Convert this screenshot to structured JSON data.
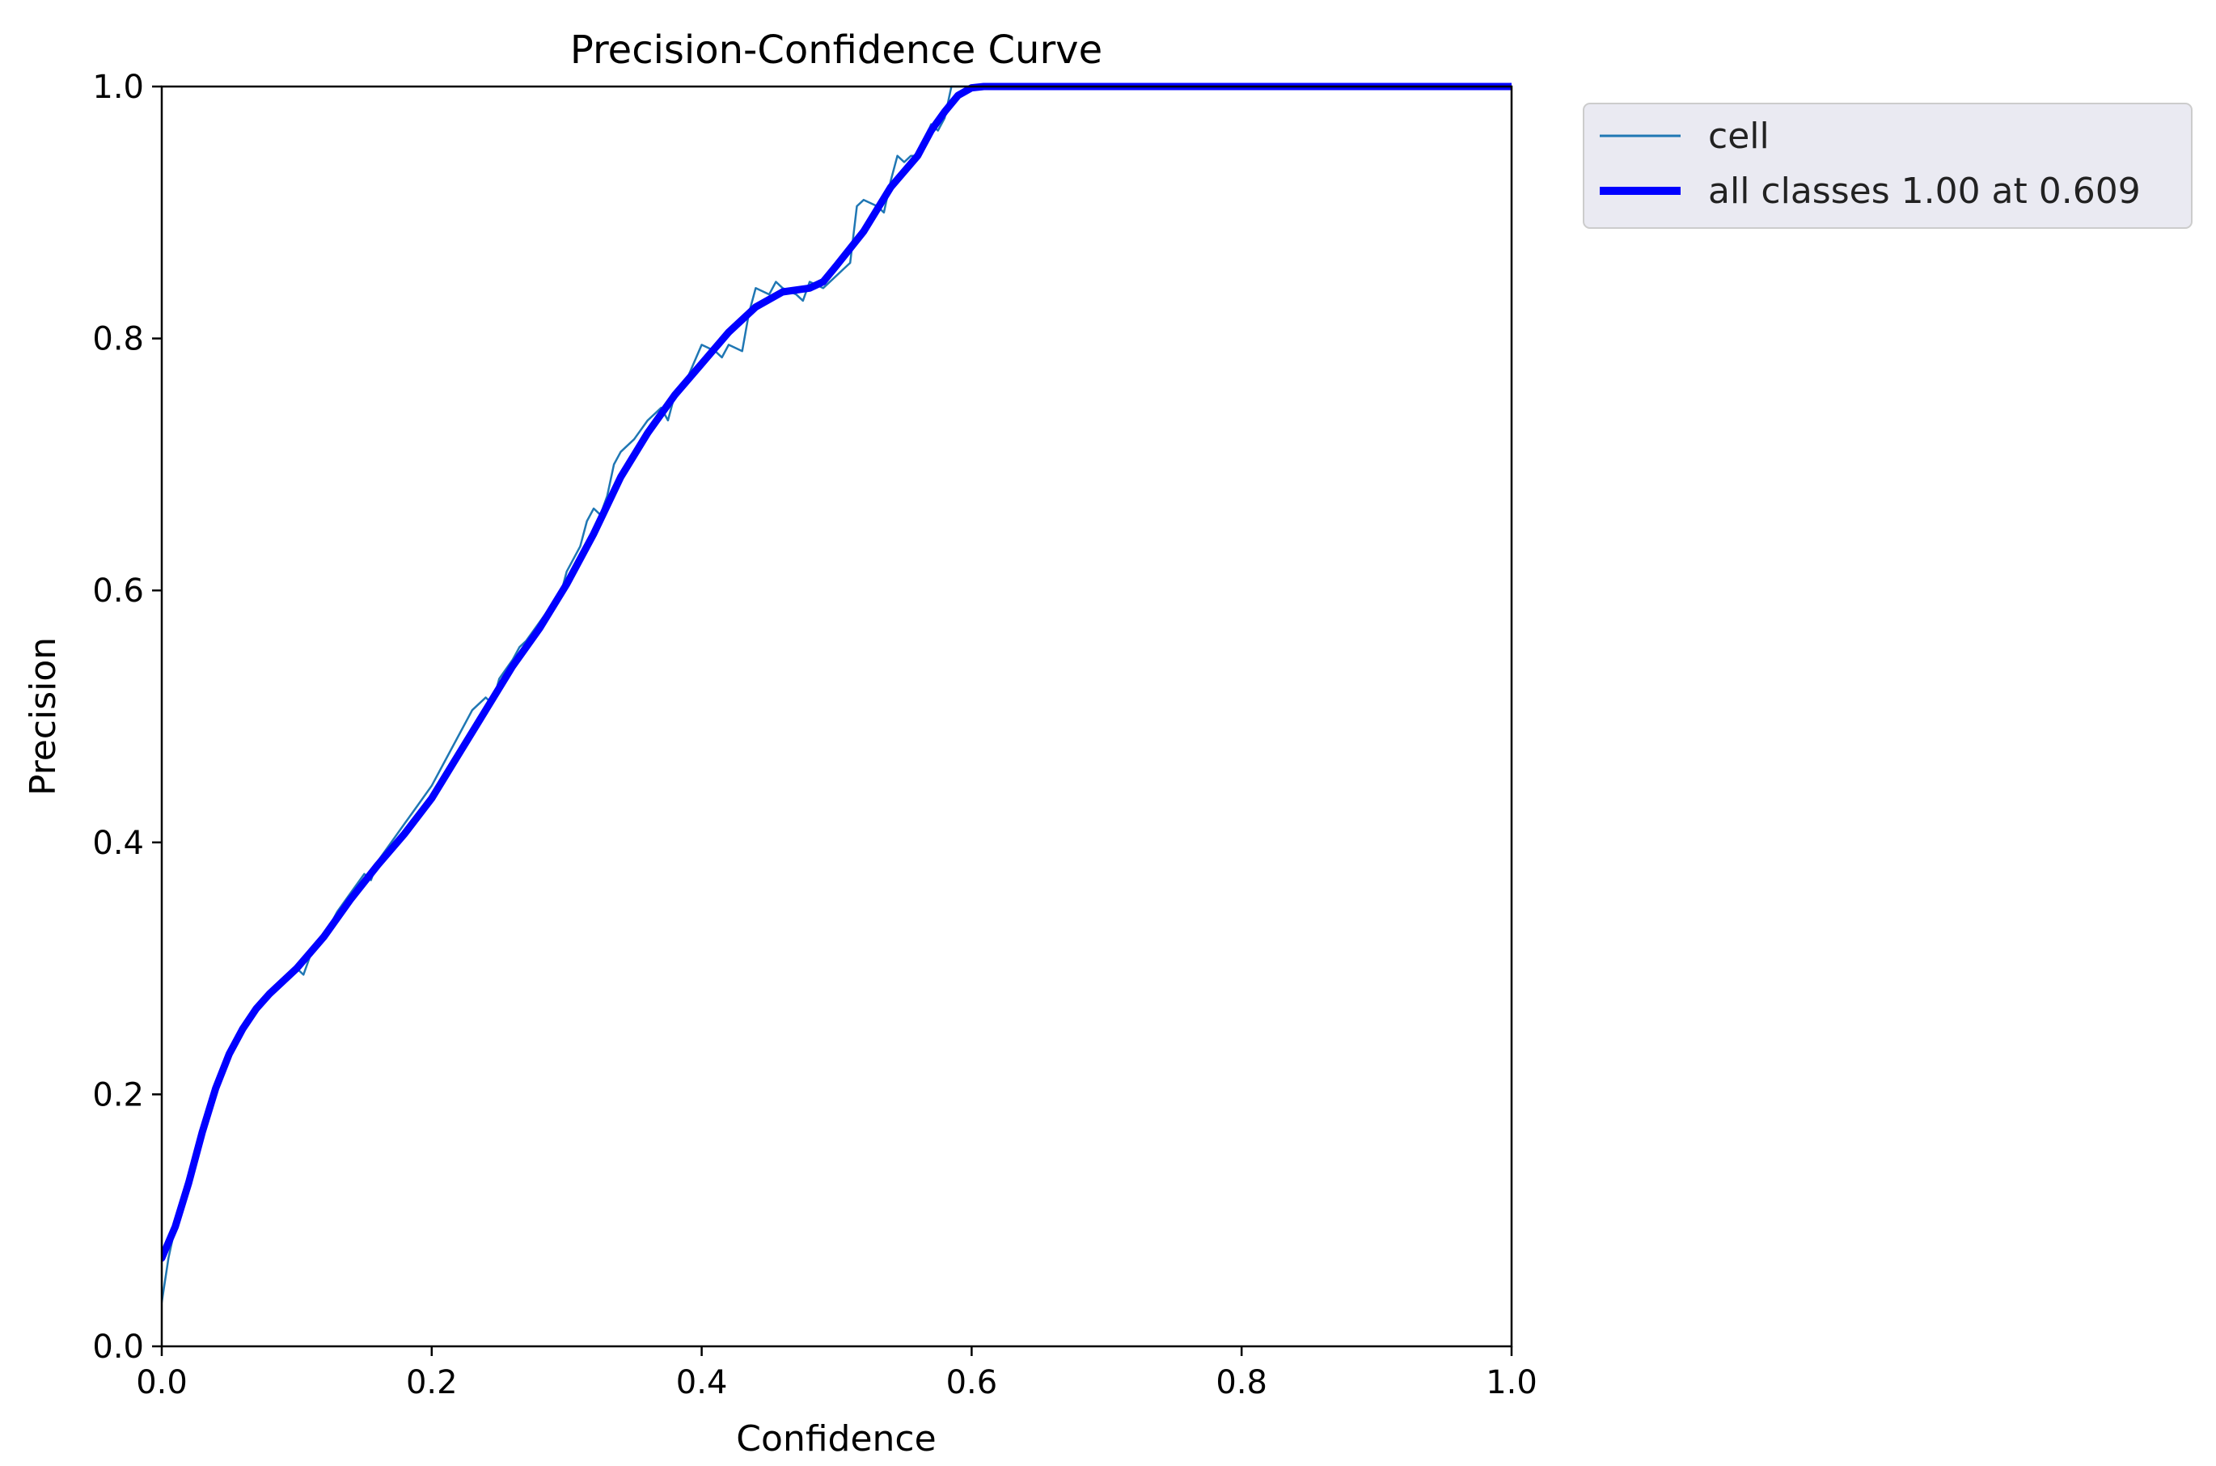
{
  "chart_data": {
    "type": "line",
    "title": "Precision-Confidence Curve",
    "xlabel": "Confidence",
    "ylabel": "Precision",
    "xlim": [
      0,
      1
    ],
    "ylim": [
      0,
      1
    ],
    "xticks": [
      "0.0",
      "0.2",
      "0.4",
      "0.6",
      "0.8",
      "1.0"
    ],
    "yticks": [
      "0.0",
      "0.2",
      "0.4",
      "0.6",
      "0.8",
      "1.0"
    ],
    "grid": false,
    "legend_position": "outside-top-right",
    "series": [
      {
        "name": "cell",
        "color": "#1f77b4",
        "x": [
          0.0,
          0.005,
          0.01,
          0.02,
          0.03,
          0.04,
          0.05,
          0.06,
          0.07,
          0.08,
          0.09,
          0.1,
          0.105,
          0.11,
          0.12,
          0.13,
          0.14,
          0.15,
          0.155,
          0.16,
          0.17,
          0.18,
          0.19,
          0.2,
          0.21,
          0.22,
          0.23,
          0.24,
          0.245,
          0.25,
          0.26,
          0.265,
          0.27,
          0.28,
          0.29,
          0.295,
          0.3,
          0.31,
          0.315,
          0.32,
          0.325,
          0.33,
          0.335,
          0.34,
          0.35,
          0.36,
          0.37,
          0.375,
          0.38,
          0.39,
          0.4,
          0.41,
          0.415,
          0.42,
          0.43,
          0.435,
          0.44,
          0.45,
          0.455,
          0.46,
          0.47,
          0.475,
          0.48,
          0.49,
          0.5,
          0.505,
          0.51,
          0.515,
          0.52,
          0.53,
          0.535,
          0.54,
          0.545,
          0.55,
          0.555,
          0.56,
          0.57,
          0.575,
          0.58,
          0.585,
          0.59,
          0.6,
          0.61,
          0.62,
          0.7,
          0.8,
          0.9,
          1.0
        ],
        "y": [
          0.035,
          0.07,
          0.095,
          0.13,
          0.175,
          0.21,
          0.235,
          0.255,
          0.27,
          0.28,
          0.29,
          0.3,
          0.295,
          0.31,
          0.325,
          0.345,
          0.36,
          0.375,
          0.37,
          0.385,
          0.4,
          0.415,
          0.43,
          0.445,
          0.465,
          0.485,
          0.505,
          0.515,
          0.51,
          0.53,
          0.545,
          0.555,
          0.56,
          0.575,
          0.59,
          0.595,
          0.615,
          0.635,
          0.655,
          0.665,
          0.66,
          0.675,
          0.7,
          0.71,
          0.72,
          0.735,
          0.745,
          0.735,
          0.755,
          0.77,
          0.795,
          0.79,
          0.785,
          0.795,
          0.79,
          0.82,
          0.84,
          0.835,
          0.845,
          0.84,
          0.835,
          0.83,
          0.845,
          0.84,
          0.85,
          0.855,
          0.86,
          0.905,
          0.91,
          0.905,
          0.9,
          0.925,
          0.945,
          0.94,
          0.945,
          0.945,
          0.97,
          0.965,
          0.975,
          1.0,
          1.0,
          1.0,
          1.0,
          1.0,
          1.0,
          1.0,
          1.0,
          1.0
        ]
      },
      {
        "name": "all classes 1.00 at 0.609",
        "color": "#0000ff",
        "x": [
          0.0,
          0.01,
          0.02,
          0.03,
          0.04,
          0.05,
          0.06,
          0.07,
          0.08,
          0.09,
          0.1,
          0.12,
          0.14,
          0.16,
          0.18,
          0.2,
          0.22,
          0.24,
          0.26,
          0.28,
          0.3,
          0.32,
          0.34,
          0.36,
          0.38,
          0.4,
          0.42,
          0.44,
          0.46,
          0.48,
          0.49,
          0.5,
          0.52,
          0.54,
          0.56,
          0.57,
          0.58,
          0.59,
          0.6,
          0.609,
          0.62,
          0.7,
          0.8,
          0.9,
          1.0
        ],
        "y": [
          0.07,
          0.095,
          0.13,
          0.17,
          0.205,
          0.232,
          0.252,
          0.268,
          0.28,
          0.29,
          0.3,
          0.325,
          0.355,
          0.382,
          0.407,
          0.435,
          0.47,
          0.505,
          0.54,
          0.57,
          0.605,
          0.645,
          0.69,
          0.725,
          0.755,
          0.78,
          0.805,
          0.825,
          0.837,
          0.84,
          0.845,
          0.858,
          0.885,
          0.92,
          0.945,
          0.965,
          0.98,
          0.993,
          0.999,
          1.0,
          1.0,
          1.0,
          1.0,
          1.0,
          1.0
        ]
      }
    ]
  }
}
